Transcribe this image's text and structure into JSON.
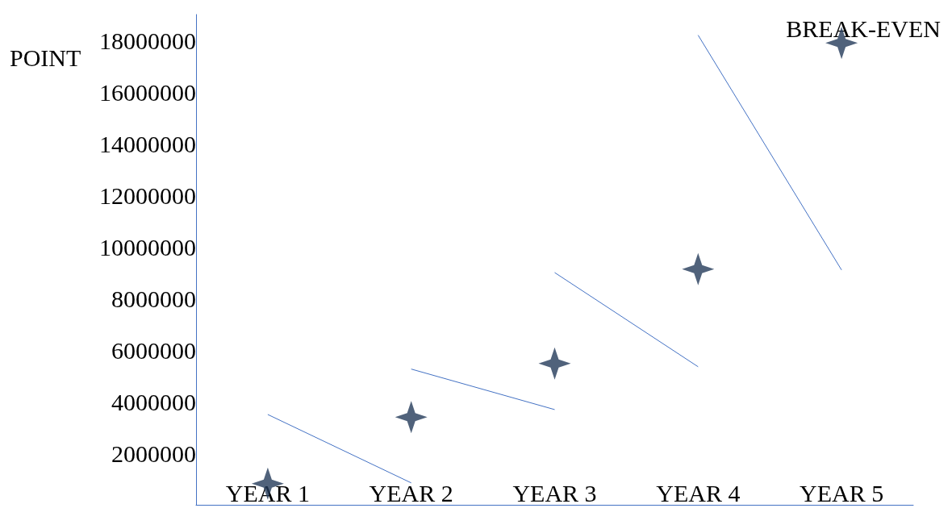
{
  "chart_data": {
    "type": "scatter",
    "categories": [
      "YEAR 1",
      "YEAR 2",
      "YEAR 3",
      "YEAR 4",
      "YEAR 5"
    ],
    "series": [
      {
        "color": "#243b5a",
        "marker": "star",
        "values": [
          820000,
          3400000,
          5480000,
          9130000,
          17900000
        ]
      },
      {
        "type": "line",
        "color": "#4472c4",
        "marker": "none",
        "x": [
          "YEAR 1",
          "YEAR 2"
        ],
        "values": [
          3500000,
          850000
        ]
      },
      {
        "type": "line",
        "color": "#4472c4",
        "marker": "none",
        "x": [
          "YEAR 2",
          "YEAR 3"
        ],
        "values": [
          5260000,
          3690000
        ]
      },
      {
        "type": "line",
        "color": "#4472c4",
        "marker": "none",
        "x": [
          "YEAR 3",
          "YEAR 4"
        ],
        "values": [
          9000000,
          5350000
        ]
      },
      {
        "type": "line",
        "color": "#4472c4",
        "marker": "none",
        "x": [
          "YEAR 4",
          "YEAR 5"
        ],
        "values": [
          18200000,
          9100000
        ]
      }
    ],
    "ylim": [
      0,
      19000000
    ],
    "yticks": [
      2000000,
      4000000,
      6000000,
      8000000,
      10000000,
      12000000,
      14000000,
      16000000,
      18000000
    ],
    "annotations": [
      "BREAK-EVEN",
      "POINT"
    ],
    "grid": false
  }
}
